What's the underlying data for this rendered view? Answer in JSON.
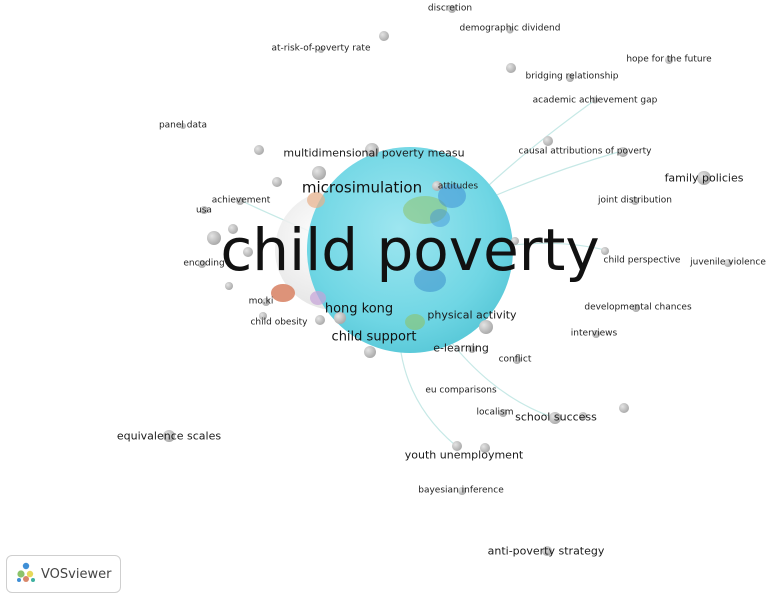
{
  "app": {
    "brand_label": "VOSviewer"
  },
  "map": {
    "title": "",
    "main_term": "child poverty",
    "terms": [
      {
        "id": "discretion",
        "text": "discretion",
        "size": 1
      },
      {
        "id": "demographic-dividend",
        "text": "demographic dividend",
        "size": 1
      },
      {
        "id": "at-risk-of-poverty-rate",
        "text": "at-risk-of-poverty rate",
        "size": 1
      },
      {
        "id": "hope-for-the-future",
        "text": "hope for the future",
        "size": 1
      },
      {
        "id": "bridging-relationship",
        "text": "bridging relationship",
        "size": 1
      },
      {
        "id": "academic-achievement-gap",
        "text": "academic achievement gap",
        "size": 1
      },
      {
        "id": "panel-data",
        "text": "panel data",
        "size": 1
      },
      {
        "id": "multidimensional-poverty",
        "text": "multidimensional poverty measu",
        "size": 2
      },
      {
        "id": "causal-attributions",
        "text": "causal attributions of poverty",
        "size": 1
      },
      {
        "id": "microsimulation",
        "text": "microsimulation",
        "size": 4
      },
      {
        "id": "attitudes",
        "text": "attitudes",
        "size": 1
      },
      {
        "id": "family-policies",
        "text": "family policies",
        "size": 2
      },
      {
        "id": "achievement",
        "text": "achievement",
        "size": 1
      },
      {
        "id": "usa",
        "text": "usa",
        "size": 1
      },
      {
        "id": "joint-distribution",
        "text": "joint distribution",
        "size": 1
      },
      {
        "id": "child-perspective",
        "text": "child perspective",
        "size": 1
      },
      {
        "id": "juvenile-violence",
        "text": "juvenile violence",
        "size": 1
      },
      {
        "id": "encoding",
        "text": "encoding",
        "size": 1
      },
      {
        "id": "mo-ki",
        "text": "mo.ki",
        "size": 1
      },
      {
        "id": "developmental-chances",
        "text": "developmental chances",
        "size": 1
      },
      {
        "id": "hong-kong",
        "text": "hong kong",
        "size": 3
      },
      {
        "id": "physical-activity",
        "text": "physical activity",
        "size": 2
      },
      {
        "id": "child-obesity",
        "text": "child obesity",
        "size": 1
      },
      {
        "id": "interviews",
        "text": "interviews",
        "size": 1
      },
      {
        "id": "child-support",
        "text": "child support",
        "size": 3
      },
      {
        "id": "e-learning",
        "text": "e-learning",
        "size": 2
      },
      {
        "id": "conflict",
        "text": "conflict",
        "size": 1
      },
      {
        "id": "eu-comparisons",
        "text": "eu comparisons",
        "size": 1
      },
      {
        "id": "localism",
        "text": "localism",
        "size": 1
      },
      {
        "id": "school-success",
        "text": "school success",
        "size": 2
      },
      {
        "id": "equivalence-scales",
        "text": "equivalence scales",
        "size": 2
      },
      {
        "id": "youth-unemployment",
        "text": "youth unemployment",
        "size": 2
      },
      {
        "id": "bayesian-inference",
        "text": "bayesian inference",
        "size": 1
      },
      {
        "id": "anti-poverty-strategy",
        "text": "anti-poverty strategy",
        "size": 2
      }
    ]
  },
  "colors": {
    "main_cluster": "#6fd6e4",
    "node_gray": "#bdbdbd",
    "cluster_orange": "#d9876a",
    "cluster_green": "#8cc36a",
    "cluster_blue": "#3f8fd6",
    "link": "#b8e3e0"
  }
}
